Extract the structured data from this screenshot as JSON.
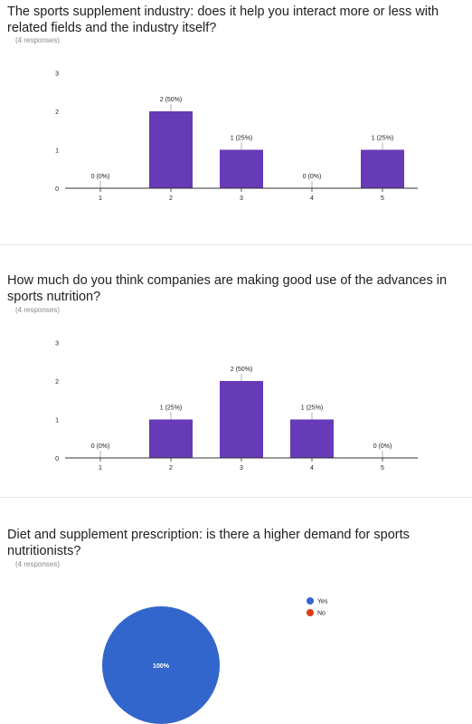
{
  "questions": [
    {
      "title": "The sports supplement industry: does it help you interact more or less with related fields and the industry itself?",
      "responses": "(4 responses)"
    },
    {
      "title": "How much do you think companies are making good use of the advances in sports nutrition?",
      "responses": "(4 responses)"
    },
    {
      "title": "Diet and supplement prescription: is there a higher demand for sports nutritionists?",
      "responses": "(4 responses)"
    }
  ],
  "colors": {
    "bar": "#673ab7",
    "yes": "#3366cc",
    "no": "#dc3912",
    "axis": "#333333",
    "text": "#212121"
  },
  "chart_data": [
    {
      "type": "bar",
      "categories": [
        "1",
        "2",
        "3",
        "4",
        "5"
      ],
      "values": [
        0,
        2,
        1,
        0,
        1
      ],
      "data_labels": [
        "0 (0%)",
        "2 (50%)",
        "1 (25%)",
        "0 (0%)",
        "1 (25%)"
      ],
      "yticks": [
        "0",
        "1",
        "2",
        "3"
      ],
      "ylim": [
        0,
        3
      ],
      "grid": false
    },
    {
      "type": "bar",
      "categories": [
        "1",
        "2",
        "3",
        "4",
        "5"
      ],
      "values": [
        0,
        1,
        2,
        1,
        0
      ],
      "data_labels": [
        "0 (0%)",
        "1 (25%)",
        "2 (50%)",
        "1 (25%)",
        "0 (0%)"
      ],
      "yticks": [
        "0",
        "1",
        "2",
        "3"
      ],
      "ylim": [
        0,
        3
      ],
      "grid": false
    },
    {
      "type": "pie",
      "slices": [
        {
          "label": "Yes",
          "value": 100,
          "percent_label": "100%",
          "color": "#3366cc"
        },
        {
          "label": "No",
          "value": 0,
          "percent_label": "",
          "color": "#dc3912"
        }
      ],
      "legend_position": "right"
    }
  ]
}
